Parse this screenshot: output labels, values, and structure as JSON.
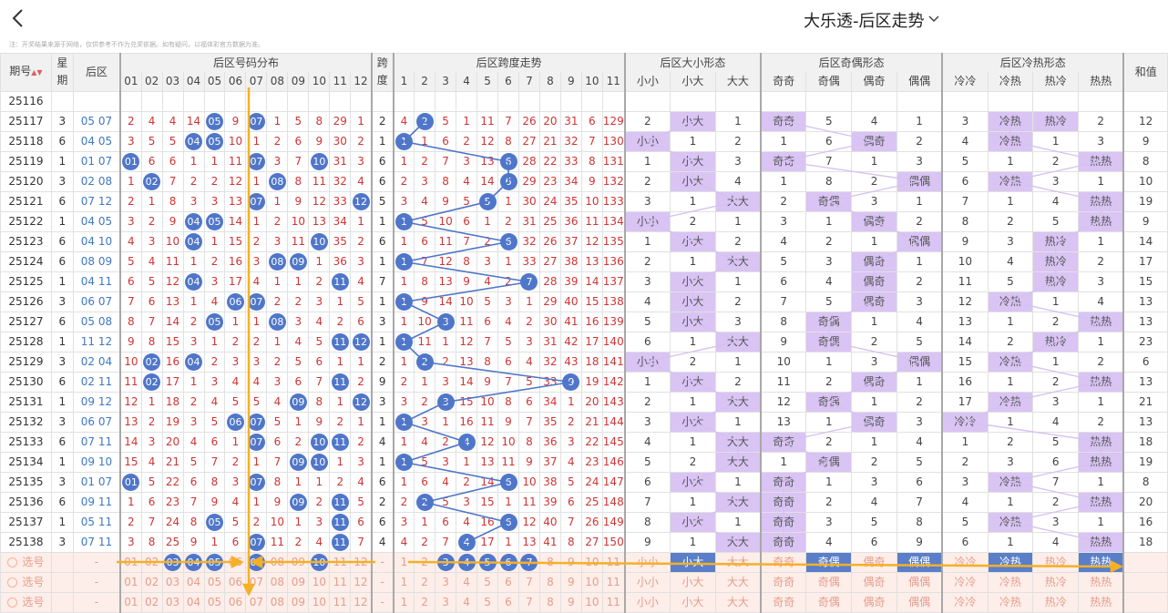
{
  "header": {
    "title": "大乐透-后区走势",
    "note": "注：开奖结果来源于网络，仅供参考不作为兑奖依据。如有疑问，以福体彩官方数据为准。"
  },
  "columns": {
    "period": "期号",
    "week": "星期",
    "back": "后区",
    "dist_group": "后区号码分布",
    "span": "跨度",
    "span_group": "后区跨度走势",
    "size_group": "后区大小形态",
    "parity_group": "后区奇偶形态",
    "temp_group": "后区冷热形态",
    "sum": "和值",
    "nums": [
      "01",
      "02",
      "03",
      "04",
      "05",
      "06",
      "07",
      "08",
      "09",
      "10",
      "11",
      "12"
    ],
    "spans": [
      "1",
      "2",
      "3",
      "4",
      "5",
      "6",
      "7",
      "8",
      "9",
      "10",
      "11"
    ],
    "span_short": [
      "跨",
      "度"
    ],
    "week_short": [
      "星",
      "期"
    ],
    "size": [
      "小小",
      "小大",
      "大大"
    ],
    "parity": [
      "奇奇",
      "奇偶",
      "偶奇",
      "偶偶"
    ],
    "temp": [
      "冷冷",
      "冷热",
      "热冷",
      "热热"
    ]
  },
  "rows": [
    {
      "p": "25116",
      "w": "",
      "b": "",
      "d": [
        "",
        "",
        "",
        "",
        "",
        "",
        "",
        "",
        "",
        "",
        "",
        ""
      ],
      "s": "",
      "t": [
        "",
        "",
        "",
        "",
        "",
        "",
        "",
        "",
        "",
        "",
        ""
      ],
      "z": [
        "",
        "",
        ""
      ],
      "q": [
        "",
        "",
        "",
        ""
      ],
      "h": [
        "",
        "",
        "",
        ""
      ],
      "sum": "",
      "cut": true
    },
    {
      "p": "25117",
      "w": "3",
      "b": "05 07",
      "d": [
        "2",
        "4",
        "4",
        "14",
        "05",
        "9",
        "07",
        "1",
        "5",
        "8",
        "29",
        "1"
      ],
      "s": "2",
      "t": [
        "4",
        "2",
        "5",
        "1",
        "11",
        "7",
        "26",
        "20",
        "31",
        "6",
        "129"
      ],
      "z": [
        "2",
        "小大",
        "1"
      ],
      "q": [
        "奇奇",
        "5",
        "4",
        "1"
      ],
      "h": [
        "3",
        "冷热",
        "热冷",
        "2"
      ],
      "sum": "12"
    },
    {
      "p": "25118",
      "w": "6",
      "b": "04 05",
      "d": [
        "3",
        "5",
        "5",
        "04",
        "05",
        "10",
        "1",
        "2",
        "6",
        "9",
        "30",
        "2"
      ],
      "s": "1",
      "t": [
        "1",
        "1",
        "6",
        "2",
        "12",
        "8",
        "27",
        "21",
        "32",
        "7",
        "130"
      ],
      "z": [
        "小小",
        "1",
        "2"
      ],
      "q": [
        "1",
        "6",
        "偶奇",
        "2"
      ],
      "h": [
        "4",
        "冷热",
        "1",
        "3"
      ],
      "sum": "9"
    },
    {
      "p": "25119",
      "w": "1",
      "b": "01 07",
      "d": [
        "01",
        "6",
        "6",
        "1",
        "1",
        "11",
        "07",
        "3",
        "7",
        "10",
        "31",
        "3"
      ],
      "s": "6",
      "t": [
        "1",
        "2",
        "7",
        "3",
        "13",
        "6",
        "28",
        "22",
        "33",
        "8",
        "131"
      ],
      "z": [
        "1",
        "小大",
        "3"
      ],
      "q": [
        "奇奇",
        "7",
        "1",
        "3"
      ],
      "h": [
        "5",
        "1",
        "2",
        "热热"
      ],
      "sum": "8"
    },
    {
      "p": "25120",
      "w": "3",
      "b": "02 08",
      "d": [
        "1",
        "02",
        "7",
        "2",
        "2",
        "12",
        "1",
        "08",
        "8",
        "11",
        "32",
        "4"
      ],
      "s": "6",
      "t": [
        "2",
        "3",
        "8",
        "4",
        "14",
        "6",
        "29",
        "23",
        "34",
        "9",
        "132"
      ],
      "z": [
        "2",
        "小大",
        "4"
      ],
      "q": [
        "1",
        "8",
        "2",
        "偶偶"
      ],
      "h": [
        "6",
        "冷热",
        "3",
        "1"
      ],
      "sum": "10"
    },
    {
      "p": "25121",
      "w": "6",
      "b": "07 12",
      "d": [
        "2",
        "1",
        "8",
        "3",
        "3",
        "13",
        "07",
        "1",
        "9",
        "12",
        "33",
        "12"
      ],
      "s": "5",
      "t": [
        "3",
        "4",
        "9",
        "5",
        "5",
        "1",
        "30",
        "24",
        "35",
        "10",
        "133"
      ],
      "z": [
        "3",
        "1",
        "大大"
      ],
      "q": [
        "2",
        "奇偶",
        "3",
        "1"
      ],
      "h": [
        "7",
        "1",
        "4",
        "热热"
      ],
      "sum": "19"
    },
    {
      "p": "25122",
      "w": "1",
      "b": "04 05",
      "d": [
        "3",
        "2",
        "9",
        "04",
        "05",
        "14",
        "1",
        "2",
        "10",
        "13",
        "34",
        "1"
      ],
      "s": "1",
      "t": [
        "1",
        "5",
        "10",
        "6",
        "1",
        "2",
        "31",
        "25",
        "36",
        "11",
        "134"
      ],
      "z": [
        "小小",
        "2",
        "1"
      ],
      "q": [
        "3",
        "1",
        "偶奇",
        "2"
      ],
      "h": [
        "8",
        "2",
        "5",
        "热热"
      ],
      "sum": "9"
    },
    {
      "p": "25123",
      "w": "6",
      "b": "04 10",
      "d": [
        "4",
        "3",
        "10",
        "04",
        "1",
        "15",
        "2",
        "3",
        "11",
        "10",
        "35",
        "2"
      ],
      "s": "6",
      "t": [
        "1",
        "6",
        "11",
        "7",
        "2",
        "6",
        "32",
        "26",
        "37",
        "12",
        "135"
      ],
      "z": [
        "1",
        "小大",
        "2"
      ],
      "q": [
        "4",
        "2",
        "1",
        "偶偶"
      ],
      "h": [
        "9",
        "3",
        "热冷",
        "1"
      ],
      "sum": "14"
    },
    {
      "p": "25124",
      "w": "6",
      "b": "08 09",
      "d": [
        "5",
        "4",
        "11",
        "1",
        "2",
        "16",
        "3",
        "08",
        "09",
        "1",
        "36",
        "3"
      ],
      "s": "1",
      "t": [
        "1",
        "7",
        "12",
        "8",
        "3",
        "1",
        "33",
        "27",
        "38",
        "13",
        "136"
      ],
      "z": [
        "2",
        "1",
        "大大"
      ],
      "q": [
        "5",
        "3",
        "偶奇",
        "1"
      ],
      "h": [
        "10",
        "4",
        "热冷",
        "2"
      ],
      "sum": "17"
    },
    {
      "p": "25125",
      "w": "1",
      "b": "04 11",
      "d": [
        "6",
        "5",
        "12",
        "04",
        "3",
        "17",
        "4",
        "1",
        "1",
        "2",
        "11",
        "4"
      ],
      "s": "7",
      "t": [
        "1",
        "8",
        "13",
        "9",
        "4",
        "2",
        "7",
        "28",
        "39",
        "14",
        "137"
      ],
      "z": [
        "3",
        "小大",
        "1"
      ],
      "q": [
        "6",
        "4",
        "偶奇",
        "2"
      ],
      "h": [
        "11",
        "5",
        "热冷",
        "3"
      ],
      "sum": "15"
    },
    {
      "p": "25126",
      "w": "3",
      "b": "06 07",
      "d": [
        "7",
        "6",
        "13",
        "1",
        "4",
        "06",
        "07",
        "2",
        "2",
        "3",
        "1",
        "5"
      ],
      "s": "1",
      "t": [
        "1",
        "9",
        "14",
        "10",
        "5",
        "3",
        "1",
        "29",
        "40",
        "15",
        "138"
      ],
      "z": [
        "4",
        "小大",
        "2"
      ],
      "q": [
        "7",
        "5",
        "偶奇",
        "3"
      ],
      "h": [
        "12",
        "冷热",
        "1",
        "4"
      ],
      "sum": "13"
    },
    {
      "p": "25127",
      "w": "6",
      "b": "05 08",
      "d": [
        "8",
        "7",
        "14",
        "2",
        "05",
        "1",
        "1",
        "08",
        "3",
        "4",
        "2",
        "6"
      ],
      "s": "3",
      "t": [
        "1",
        "10",
        "3",
        "11",
        "6",
        "4",
        "2",
        "30",
        "41",
        "16",
        "139"
      ],
      "z": [
        "5",
        "小大",
        "3"
      ],
      "q": [
        "8",
        "奇偶",
        "1",
        "4"
      ],
      "h": [
        "13",
        "1",
        "2",
        "热热"
      ],
      "sum": "13"
    },
    {
      "p": "25128",
      "w": "1",
      "b": "11 12",
      "d": [
        "9",
        "8",
        "15",
        "3",
        "1",
        "2",
        "2",
        "1",
        "4",
        "5",
        "11",
        "12"
      ],
      "s": "1",
      "t": [
        "1",
        "11",
        "1",
        "12",
        "7",
        "5",
        "3",
        "31",
        "42",
        "17",
        "140"
      ],
      "z": [
        "6",
        "1",
        "大大"
      ],
      "q": [
        "9",
        "奇偶",
        "2",
        "5"
      ],
      "h": [
        "14",
        "2",
        "热冷",
        "1"
      ],
      "sum": "23"
    },
    {
      "p": "25129",
      "w": "3",
      "b": "02 04",
      "d": [
        "10",
        "02",
        "16",
        "04",
        "2",
        "3",
        "3",
        "2",
        "5",
        "6",
        "1",
        "1"
      ],
      "s": "2",
      "t": [
        "1",
        "2",
        "2",
        "13",
        "8",
        "6",
        "4",
        "32",
        "43",
        "18",
        "141"
      ],
      "z": [
        "小小",
        "2",
        "1"
      ],
      "q": [
        "10",
        "1",
        "3",
        "偶偶"
      ],
      "h": [
        "15",
        "冷热",
        "1",
        "2"
      ],
      "sum": "6"
    },
    {
      "p": "25130",
      "w": "6",
      "b": "02 11",
      "d": [
        "11",
        "02",
        "17",
        "1",
        "3",
        "4",
        "4",
        "3",
        "6",
        "7",
        "11",
        "2"
      ],
      "s": "9",
      "t": [
        "2",
        "1",
        "3",
        "14",
        "9",
        "7",
        "5",
        "33",
        "9",
        "19",
        "142"
      ],
      "z": [
        "1",
        "小大",
        "2"
      ],
      "q": [
        "11",
        "2",
        "偶奇",
        "1"
      ],
      "h": [
        "16",
        "1",
        "2",
        "热热"
      ],
      "sum": "13"
    },
    {
      "p": "25131",
      "w": "1",
      "b": "09 12",
      "d": [
        "12",
        "1",
        "18",
        "2",
        "4",
        "5",
        "5",
        "4",
        "09",
        "8",
        "1",
        "12"
      ],
      "s": "3",
      "t": [
        "3",
        "2",
        "3",
        "15",
        "10",
        "8",
        "6",
        "34",
        "1",
        "20",
        "143"
      ],
      "z": [
        "2",
        "1",
        "大大"
      ],
      "q": [
        "12",
        "奇偶",
        "1",
        "2"
      ],
      "h": [
        "17",
        "冷热",
        "3",
        "1"
      ],
      "sum": "21"
    },
    {
      "p": "25132",
      "w": "3",
      "b": "06 07",
      "d": [
        "13",
        "2",
        "19",
        "3",
        "5",
        "06",
        "07",
        "5",
        "1",
        "9",
        "2",
        "1"
      ],
      "s": "1",
      "t": [
        "1",
        "3",
        "1",
        "16",
        "11",
        "9",
        "7",
        "35",
        "2",
        "21",
        "144"
      ],
      "z": [
        "3",
        "小大",
        "1"
      ],
      "q": [
        "13",
        "1",
        "偶奇",
        "3"
      ],
      "h": [
        "冷冷",
        "1",
        "4",
        "2"
      ],
      "sum": "13"
    },
    {
      "p": "25133",
      "w": "6",
      "b": "07 11",
      "d": [
        "14",
        "3",
        "20",
        "4",
        "6",
        "1",
        "07",
        "6",
        "2",
        "10",
        "11",
        "2"
      ],
      "s": "4",
      "t": [
        "1",
        "4",
        "2",
        "4",
        "12",
        "10",
        "8",
        "36",
        "3",
        "22",
        "145"
      ],
      "z": [
        "4",
        "1",
        "大大"
      ],
      "q": [
        "奇奇",
        "2",
        "1",
        "4"
      ],
      "h": [
        "1",
        "2",
        "5",
        "热热"
      ],
      "sum": "18"
    },
    {
      "p": "25134",
      "w": "1",
      "b": "09 10",
      "d": [
        "15",
        "4",
        "21",
        "5",
        "7",
        "2",
        "1",
        "7",
        "09",
        "10",
        "1",
        "3"
      ],
      "s": "1",
      "t": [
        "1",
        "5",
        "3",
        "1",
        "13",
        "11",
        "9",
        "37",
        "4",
        "23",
        "146"
      ],
      "z": [
        "5",
        "2",
        "大大"
      ],
      "q": [
        "1",
        "奇偶",
        "2",
        "5"
      ],
      "h": [
        "2",
        "3",
        "6",
        "热热"
      ],
      "sum": "19"
    },
    {
      "p": "25135",
      "w": "3",
      "b": "01 07",
      "d": [
        "01",
        "5",
        "22",
        "6",
        "8",
        "3",
        "07",
        "8",
        "1",
        "1",
        "2",
        "4"
      ],
      "s": "6",
      "t": [
        "1",
        "6",
        "4",
        "2",
        "14",
        "6",
        "10",
        "38",
        "5",
        "24",
        "147"
      ],
      "z": [
        "6",
        "小大",
        "1"
      ],
      "q": [
        "奇奇",
        "1",
        "3",
        "6"
      ],
      "h": [
        "3",
        "冷热",
        "7",
        "1"
      ],
      "sum": "8"
    },
    {
      "p": "25136",
      "w": "6",
      "b": "09 11",
      "d": [
        "1",
        "6",
        "23",
        "7",
        "9",
        "4",
        "1",
        "9",
        "09",
        "2",
        "11",
        "5"
      ],
      "s": "2",
      "t": [
        "2",
        "2",
        "5",
        "3",
        "15",
        "1",
        "11",
        "39",
        "6",
        "25",
        "148"
      ],
      "z": [
        "7",
        "1",
        "大大"
      ],
      "q": [
        "奇奇",
        "2",
        "4",
        "7"
      ],
      "h": [
        "4",
        "1",
        "2",
        "热热"
      ],
      "sum": "20"
    },
    {
      "p": "25137",
      "w": "1",
      "b": "05 11",
      "d": [
        "2",
        "7",
        "24",
        "8",
        "05",
        "5",
        "2",
        "10",
        "1",
        "3",
        "11",
        "6"
      ],
      "s": "6",
      "t": [
        "3",
        "1",
        "6",
        "4",
        "16",
        "6",
        "12",
        "40",
        "7",
        "26",
        "149"
      ],
      "z": [
        "8",
        "小大",
        "1"
      ],
      "q": [
        "奇奇",
        "3",
        "5",
        "8"
      ],
      "h": [
        "5",
        "冷热",
        "3",
        "1"
      ],
      "sum": "16"
    },
    {
      "p": "25138",
      "w": "3",
      "b": "07 11",
      "d": [
        "3",
        "8",
        "25",
        "9",
        "1",
        "6",
        "07",
        "11",
        "2",
        "4",
        "11",
        "7"
      ],
      "s": "4",
      "t": [
        "4",
        "2",
        "7",
        "4",
        "17",
        "1",
        "13",
        "41",
        "8",
        "27",
        "150"
      ],
      "z": [
        "9",
        "1",
        "大大"
      ],
      "q": [
        "奇奇",
        "4",
        "6",
        "9"
      ],
      "h": [
        "6",
        "1",
        "4",
        "热热"
      ],
      "sum": "18"
    }
  ],
  "select": {
    "label": "选号",
    "dash": "-"
  },
  "sel_balls": {
    "nums": [
      "03",
      "04",
      "05",
      "07",
      "10"
    ],
    "spans": [
      "3",
      "4",
      "5",
      "6",
      "7"
    ]
  },
  "colors": {
    "ball": "#4f76c9",
    "highlight": "#d9c4f4",
    "arrow": "#f5b025",
    "miss": "#d03434"
  }
}
